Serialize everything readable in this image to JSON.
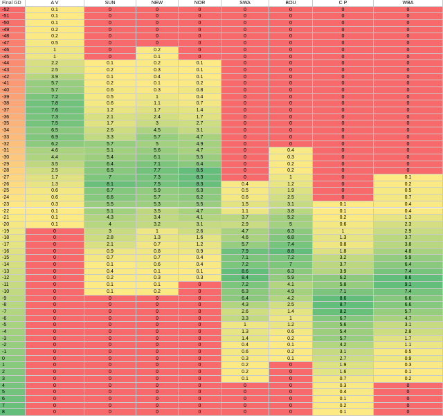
{
  "header": {
    "gd_label": "Final GD",
    "teams": [
      "A V",
      "SUN",
      "NEW",
      "NOR",
      "SWA",
      "BOU",
      "C P",
      "WBA"
    ]
  },
  "colors": {
    "red": "#f8696b",
    "yellow": "#ffeb84",
    "green": "#63be7b"
  },
  "rows": [
    {
      "gd": "-52",
      "v": [
        "0.1",
        "0",
        "0",
        "0",
        "0",
        "0",
        "0",
        "0"
      ]
    },
    {
      "gd": "-51",
      "v": [
        "0.1",
        "0",
        "0",
        "0",
        "0",
        "0",
        "0",
        "0"
      ]
    },
    {
      "gd": "-50",
      "v": [
        "0.1",
        "0",
        "0",
        "0",
        "0",
        "0",
        "0",
        "0"
      ]
    },
    {
      "gd": "-49",
      "v": [
        "0.2",
        "0",
        "0",
        "0",
        "0",
        "0",
        "0",
        "0"
      ]
    },
    {
      "gd": "-48",
      "v": [
        "0.2",
        "0",
        "0",
        "0",
        "0",
        "0",
        "0",
        "0"
      ]
    },
    {
      "gd": "-47",
      "v": [
        "0.5",
        "0",
        "0",
        "0",
        "0",
        "0",
        "0",
        "0"
      ]
    },
    {
      "gd": "-46",
      "v": [
        "1",
        "0",
        "0.2",
        "0",
        "0",
        "0",
        "0",
        "0"
      ]
    },
    {
      "gd": "-45",
      "v": [
        "1",
        "0",
        "0.1",
        "0",
        "0",
        "0",
        "0",
        "0"
      ]
    },
    {
      "gd": "-44",
      "v": [
        "2.2",
        "0.1",
        "0.2",
        "0.1",
        "0",
        "0",
        "0",
        "0"
      ]
    },
    {
      "gd": "-43",
      "v": [
        "2.5",
        "0.2",
        "0.3",
        "0.1",
        "0",
        "0",
        "0",
        "0"
      ]
    },
    {
      "gd": "-42",
      "v": [
        "3.9",
        "0.1",
        "0.4",
        "0.1",
        "0",
        "0",
        "0",
        "0"
      ]
    },
    {
      "gd": "-41",
      "v": [
        "5.7",
        "0.2",
        "0.1",
        "0.2",
        "0",
        "0",
        "0",
        "0"
      ]
    },
    {
      "gd": "-40",
      "v": [
        "5.7",
        "0.6",
        "0.3",
        "0.8",
        "0",
        "0",
        "0",
        "0"
      ]
    },
    {
      "gd": "-39",
      "v": [
        "7.2",
        "0.5",
        "1",
        "0.4",
        "0",
        "0",
        "0",
        "0"
      ]
    },
    {
      "gd": "-38",
      "v": [
        "7.8",
        "0.6",
        "1.1",
        "0.7",
        "0",
        "0",
        "0",
        "0"
      ]
    },
    {
      "gd": "-37",
      "v": [
        "7.6",
        "1.2",
        "1.7",
        "1.4",
        "0",
        "0",
        "0",
        "0"
      ]
    },
    {
      "gd": "-36",
      "v": [
        "7.3",
        "2.1",
        "2.4",
        "1.7",
        "0",
        "0",
        "0",
        "0"
      ]
    },
    {
      "gd": "-35",
      "v": [
        "7.5",
        "1.7",
        "3",
        "2.7",
        "0",
        "0",
        "0",
        "0"
      ]
    },
    {
      "gd": "-34",
      "v": [
        "6.5",
        "2.6",
        "4.5",
        "3.1",
        "0",
        "0",
        "0",
        "0"
      ]
    },
    {
      "gd": "-33",
      "v": [
        "6.9",
        "3.3",
        "5.7",
        "4.7",
        "0",
        "0",
        "0",
        "0"
      ]
    },
    {
      "gd": "-32",
      "v": [
        "6.2",
        "5.7",
        "5",
        "4.9",
        "0",
        "0",
        "0",
        "0"
      ]
    },
    {
      "gd": "-31",
      "v": [
        "4.6",
        "5.1",
        "5.6",
        "4.7",
        "0",
        "0.4",
        "0",
        "0"
      ]
    },
    {
      "gd": "-30",
      "v": [
        "4.4",
        "5.4",
        "6.1",
        "5.5",
        "0",
        "0.3",
        "0",
        "0"
      ]
    },
    {
      "gd": "-29",
      "v": [
        "3.5",
        "6.4",
        "7.1",
        "6.4",
        "0",
        "0.2",
        "0",
        "0"
      ]
    },
    {
      "gd": "-28",
      "v": [
        "2.5",
        "6.5",
        "7.7",
        "8.5",
        "0",
        "0.2",
        "0",
        "0"
      ]
    },
    {
      "gd": "-27",
      "v": [
        "1.7",
        "7",
        "7.3",
        "8.3",
        "0",
        "1",
        "0",
        "0.1"
      ]
    },
    {
      "gd": "-26",
      "v": [
        "1.3",
        "8.1",
        "7.5",
        "8.3",
        "0.4",
        "1.2",
        "0",
        "0.2"
      ]
    },
    {
      "gd": "-25",
      "v": [
        "0.6",
        "6.7",
        "5.9",
        "6.3",
        "0.5",
        "1.9",
        "0",
        "0.5"
      ]
    },
    {
      "gd": "-24",
      "v": [
        "0.6",
        "6.6",
        "5.7",
        "6.2",
        "0.6",
        "2.5",
        "0",
        "0.7"
      ]
    },
    {
      "gd": "-23",
      "v": [
        "0.3",
        "5.5",
        "5.3",
        "5.5",
        "1.5",
        "3.1",
        "0.1",
        "0.4"
      ]
    },
    {
      "gd": "-22",
      "v": [
        "0.1",
        "5.1",
        "3.5",
        "4.7",
        "1.1",
        "3.8",
        "0.1",
        "0.4"
      ]
    },
    {
      "gd": "-21",
      "v": [
        "0.1",
        "4.3",
        "3.4",
        "4.1",
        "3.7",
        "5.2",
        "0.2",
        "1.3"
      ]
    },
    {
      "gd": "-20",
      "v": [
        "0.1",
        "4",
        "3.2",
        "3.1",
        "2.9",
        "5",
        "0.6",
        "2.3"
      ]
    },
    {
      "gd": "-19",
      "v": [
        "0",
        "3",
        "1",
        "2.6",
        "4.7",
        "6.3",
        "1",
        "2.9"
      ]
    },
    {
      "gd": "-18",
      "v": [
        "0",
        "2.8",
        "1.3",
        "1.6",
        "4.6",
        "6.8",
        "1.3",
        "3.7"
      ]
    },
    {
      "gd": "-17",
      "v": [
        "0",
        "2.1",
        "0.7",
        "1.2",
        "5.7",
        "7.4",
        "0.8",
        "3.8"
      ]
    },
    {
      "gd": "-16",
      "v": [
        "0",
        "0.9",
        "0.8",
        "0.9",
        "7.9",
        "8.8",
        "1.8",
        "4.8"
      ]
    },
    {
      "gd": "-15",
      "v": [
        "0",
        "0.7",
        "0.7",
        "0.4",
        "7.1",
        "7.2",
        "3.2",
        "5.9"
      ]
    },
    {
      "gd": "-14",
      "v": [
        "0",
        "0.1",
        "0.6",
        "0.4",
        "7.2",
        "7",
        "3.7",
        "6.4"
      ]
    },
    {
      "gd": "-13",
      "v": [
        "0",
        "0.4",
        "0.1",
        "0.1",
        "8.6",
        "6.3",
        "3.9",
        "7.4"
      ]
    },
    {
      "gd": "-12",
      "v": [
        "0",
        "0.2",
        "0.3",
        "0.3",
        "8.4",
        "5.9",
        "6.2",
        "8.6"
      ]
    },
    {
      "gd": "-11",
      "v": [
        "0",
        "0.1",
        "0.1",
        "0",
        "7.2",
        "4.1",
        "5.8",
        "9.1"
      ]
    },
    {
      "gd": "-10",
      "v": [
        "0",
        "0.1",
        "0.2",
        "0",
        "6.3",
        "4.9",
        "7.1",
        "7.4"
      ]
    },
    {
      "gd": "-9",
      "v": [
        "0",
        "0",
        "0",
        "0",
        "6.4",
        "4.2",
        "8.6",
        "6.6"
      ]
    },
    {
      "gd": "-8",
      "v": [
        "0",
        "0",
        "0",
        "0",
        "4.3",
        "2.5",
        "8.7",
        "6.6"
      ]
    },
    {
      "gd": "-7",
      "v": [
        "0",
        "0",
        "0",
        "0",
        "2.6",
        "1.4",
        "8.2",
        "5.7"
      ]
    },
    {
      "gd": "-6",
      "v": [
        "0",
        "0",
        "0",
        "0",
        "3.3",
        "1",
        "6.7",
        "4.7"
      ]
    },
    {
      "gd": "-5",
      "v": [
        "0",
        "0",
        "0",
        "0",
        "1",
        "1.2",
        "5.6",
        "3.1"
      ]
    },
    {
      "gd": "-4",
      "v": [
        "0",
        "0",
        "0",
        "0",
        "1.3",
        "0.6",
        "5.4",
        "2.8"
      ]
    },
    {
      "gd": "-3",
      "v": [
        "0",
        "0",
        "0",
        "0",
        "1.4",
        "0.2",
        "5.7",
        "1.7"
      ]
    },
    {
      "gd": "-2",
      "v": [
        "0",
        "0",
        "0",
        "0",
        "0.4",
        "0.1",
        "4.2",
        "1.1"
      ]
    },
    {
      "gd": "-1",
      "v": [
        "0",
        "0",
        "0",
        "0",
        "0.6",
        "0.2",
        "3.1",
        "0.5"
      ]
    },
    {
      "gd": "0",
      "v": [
        "0",
        "0",
        "0",
        "0",
        "0.3",
        "0.1",
        "2.7",
        "0.9"
      ]
    },
    {
      "gd": "1",
      "v": [
        "0",
        "0",
        "0",
        "0",
        "0.2",
        "0",
        "1.9",
        "0.3"
      ]
    },
    {
      "gd": "2",
      "v": [
        "0",
        "0",
        "0",
        "0",
        "0.2",
        "0",
        "1.6",
        "0.1"
      ]
    },
    {
      "gd": "3",
      "v": [
        "0",
        "0",
        "0",
        "0",
        "0.1",
        "0",
        "0.7",
        "0.2"
      ]
    },
    {
      "gd": "4",
      "v": [
        "0",
        "0",
        "0",
        "0",
        "0",
        "0",
        "0.3",
        "0"
      ]
    },
    {
      "gd": "5",
      "v": [
        "0",
        "0",
        "0",
        "0",
        "0",
        "0",
        "0.4",
        "0"
      ]
    },
    {
      "gd": "6",
      "v": [
        "0",
        "0",
        "0",
        "0",
        "0",
        "0",
        "0.1",
        "0"
      ]
    },
    {
      "gd": "7",
      "v": [
        "0",
        "0",
        "0",
        "0",
        "0",
        "0",
        "0.2",
        "0"
      ]
    },
    {
      "gd": "8",
      "v": [
        "0",
        "0",
        "0",
        "0",
        "0",
        "0",
        "0.1",
        "0"
      ]
    }
  ]
}
